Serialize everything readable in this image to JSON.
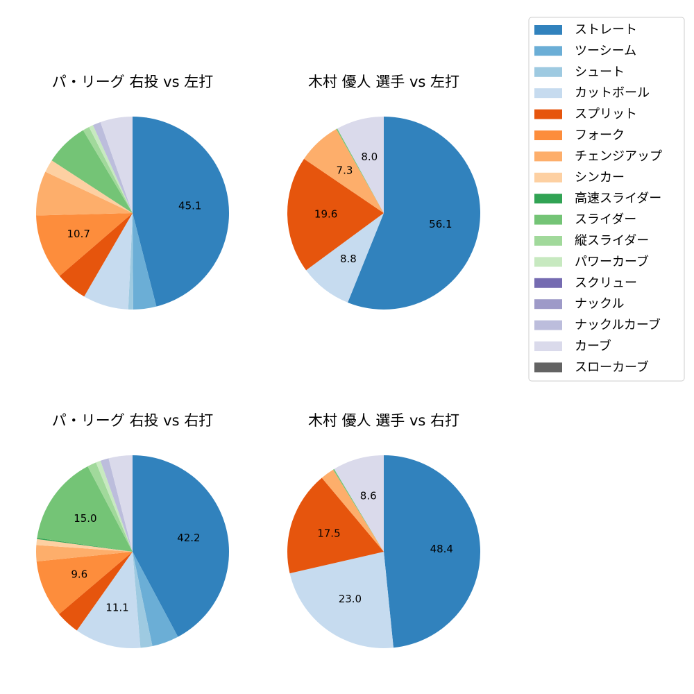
{
  "chart_data": [
    {
      "type": "pie",
      "title": "パ・リーグ 右投 vs 左打",
      "categories": [
        "ストレート",
        "ツーシーム",
        "シュート",
        "カットボール",
        "スプリット",
        "フォーク",
        "チェンジアップ",
        "シンカー",
        "高速スライダー",
        "スライダー",
        "縦スライダー",
        "パワーカーブ",
        "スクリュー",
        "ナックル",
        "ナックルカーブ",
        "カーブ",
        "スローカーブ"
      ],
      "values": [
        45.1,
        3.8,
        0.8,
        7.5,
        5.2,
        10.7,
        7.3,
        2.1,
        0.0,
        7.1,
        1.1,
        0.7,
        0.0,
        0.0,
        1.3,
        5.3,
        0.0
      ],
      "labels_shown": [
        "45.1",
        "",
        "",
        "",
        "",
        "10.7",
        "",
        "",
        "",
        "",
        "",
        "",
        "",
        "",
        "",
        "",
        ""
      ],
      "startangle": 90,
      "direction": "clockwise"
    },
    {
      "type": "pie",
      "title": "木村 優人 選手 vs 左打",
      "categories": [
        "ストレート",
        "ツーシーム",
        "シュート",
        "カットボール",
        "スプリット",
        "フォーク",
        "チェンジアップ",
        "シンカー",
        "高速スライダー",
        "スライダー",
        "縦スライダー",
        "パワーカーブ",
        "スクリュー",
        "ナックル",
        "ナックルカーブ",
        "カーブ",
        "スローカーブ"
      ],
      "values": [
        56.1,
        0,
        0,
        8.8,
        19.6,
        0,
        7.3,
        0,
        0,
        0.2,
        0,
        0,
        0,
        0,
        0,
        8.0,
        0
      ],
      "labels_shown": [
        "56.1",
        "",
        "",
        "8.8",
        "19.6",
        "",
        "7.3",
        "",
        "",
        "",
        "",
        "",
        "",
        "",
        "",
        "8.0",
        ""
      ],
      "startangle": 90,
      "direction": "clockwise"
    },
    {
      "type": "pie",
      "title": "パ・リーグ 右投 vs 右打",
      "categories": [
        "ストレート",
        "ツーシーム",
        "シュート",
        "カットボール",
        "スプリット",
        "フォーク",
        "チェンジアップ",
        "シンカー",
        "高速スライダー",
        "スライダー",
        "縦スライダー",
        "パワーカーブ",
        "スクリュー",
        "ナックル",
        "ナックルカーブ",
        "カーブ",
        "スローカーブ"
      ],
      "values": [
        42.2,
        4.5,
        2.0,
        11.1,
        4.0,
        9.6,
        2.7,
        1.0,
        0.2,
        15.0,
        1.5,
        0.8,
        0.0,
        0.0,
        1.4,
        4.0,
        0.0
      ],
      "labels_shown": [
        "42.2",
        "",
        "",
        "11.1",
        "",
        "9.6",
        "",
        "",
        "",
        "15.0",
        "",
        "",
        "",
        "",
        "",
        "",
        ""
      ],
      "startangle": 90,
      "direction": "clockwise"
    },
    {
      "type": "pie",
      "title": "木村 優人 選手 vs 右打",
      "categories": [
        "ストレート",
        "ツーシーム",
        "シュート",
        "カットボール",
        "スプリット",
        "フォーク",
        "チェンジアップ",
        "シンカー",
        "高速スライダー",
        "スライダー",
        "縦スライダー",
        "パワーカーブ",
        "スクリュー",
        "ナックル",
        "ナックルカーブ",
        "カーブ",
        "スローカーブ"
      ],
      "values": [
        48.4,
        0,
        0,
        23.0,
        17.5,
        0,
        2.3,
        0,
        0,
        0.2,
        0,
        0,
        0,
        0,
        0,
        8.6,
        0
      ],
      "labels_shown": [
        "48.4",
        "",
        "",
        "23.0",
        "17.5",
        "",
        "",
        "",
        "",
        "",
        "",
        "",
        "",
        "",
        "",
        "8.6",
        ""
      ],
      "startangle": 90,
      "direction": "clockwise"
    }
  ],
  "legend": {
    "placement": "top-right",
    "entries": [
      {
        "label": "ストレート",
        "color": "#3182bd"
      },
      {
        "label": "ツーシーム",
        "color": "#6baed6"
      },
      {
        "label": "シュート",
        "color": "#9ecae1"
      },
      {
        "label": "カットボール",
        "color": "#c6dbef"
      },
      {
        "label": "スプリット",
        "color": "#e6550d"
      },
      {
        "label": "フォーク",
        "color": "#fd8d3c"
      },
      {
        "label": "チェンジアップ",
        "color": "#fdae6b"
      },
      {
        "label": "シンカー",
        "color": "#fdd0a2"
      },
      {
        "label": "高速スライダー",
        "color": "#31a354"
      },
      {
        "label": "スライダー",
        "color": "#74c476"
      },
      {
        "label": "縦スライダー",
        "color": "#a1d99b"
      },
      {
        "label": "パワーカーブ",
        "color": "#c7e9c0"
      },
      {
        "label": "スクリュー",
        "color": "#756bb1"
      },
      {
        "label": "ナックル",
        "color": "#9e9ac8"
      },
      {
        "label": "ナックルカーブ",
        "color": "#bcbddc"
      },
      {
        "label": "カーブ",
        "color": "#dadaeb"
      },
      {
        "label": "スローカーブ",
        "color": "#636363"
      }
    ]
  }
}
